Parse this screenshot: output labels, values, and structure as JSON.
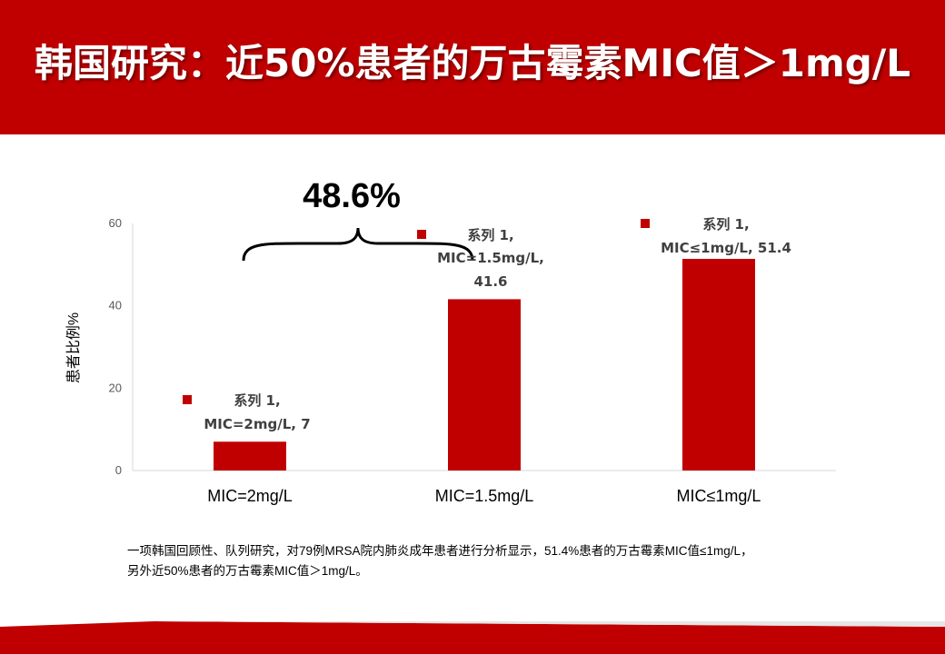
{
  "slide": {
    "title": "韩国研究：近50%患者的万古霉素MIC值＞1mg/L",
    "caption_line1": "一项韩国回顾性、队列研究，对79例MRSA院内肺炎成年患者进行分析显示，51.4%患者的万古霉素MIC值≤1mg/L，",
    "caption_line2": "另外近50%患者的万古霉素MIC值＞1mg/L。"
  },
  "colors": {
    "accent": "#c00000",
    "bar": "#c00000",
    "text": "#000000",
    "label_text": "#404040"
  },
  "chart_data": {
    "type": "bar",
    "ylabel": "患者比例%",
    "xlabel": "",
    "ylim": [
      0,
      60
    ],
    "yticks": [
      0,
      20,
      40,
      60
    ],
    "grid": false,
    "categories": [
      "MIC=2mg/L",
      "MIC=1.5mg/L",
      "MIC≤1mg/L"
    ],
    "series": [
      {
        "name": "系列 1",
        "values": [
          7,
          41.6,
          51.4
        ]
      }
    ],
    "data_labels": [
      [
        "系列 1,",
        "MIC=2mg/L, 7"
      ],
      [
        "系列 1,",
        "MIC=1.5mg/L,",
        "41.6"
      ],
      [
        "系列 1,",
        "MIC≤1mg/L, 51.4"
      ]
    ],
    "annotation": "48.6%"
  }
}
